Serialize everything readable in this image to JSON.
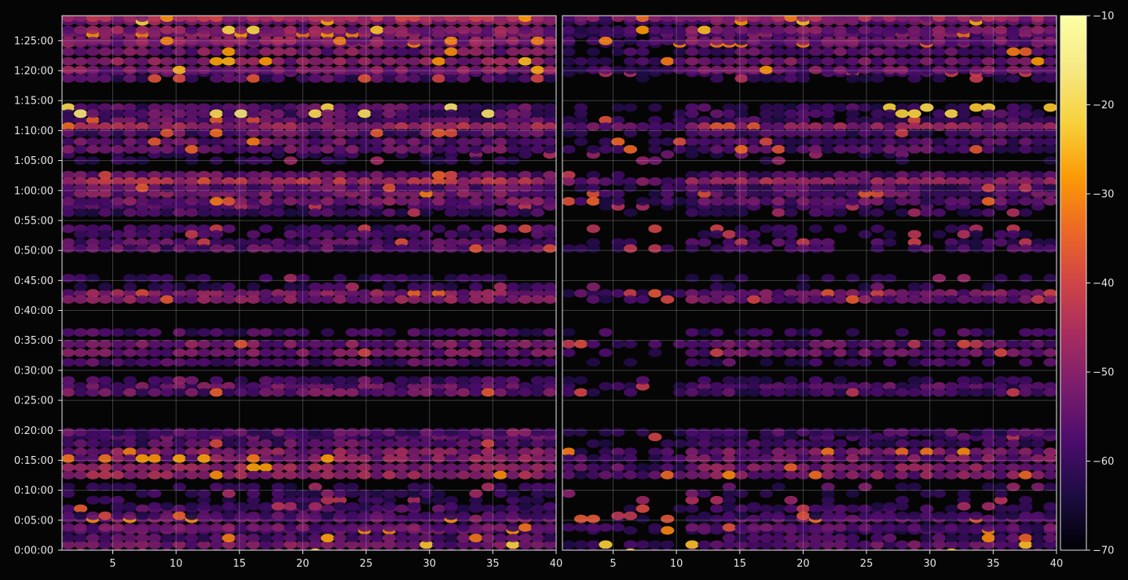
{
  "chart_data": {
    "type": "heatmap",
    "panels": 2,
    "x": {
      "label": "",
      "lim": [
        1,
        40
      ],
      "ticks": [
        5,
        10,
        15,
        20,
        25,
        30,
        35,
        40
      ],
      "tick_labels": [
        "5",
        "10",
        "15",
        "20",
        "25",
        "30",
        "35",
        "40"
      ]
    },
    "y": {
      "label": "",
      "lim_seconds": [
        0,
        5350
      ],
      "ticks_seconds": [
        0,
        300,
        600,
        900,
        1200,
        1500,
        1800,
        2100,
        2400,
        2700,
        3000,
        3300,
        3600,
        3900,
        4200,
        4500,
        4800,
        5100
      ],
      "tick_labels": [
        "0:00:00",
        "0:05:00",
        "0:10:00",
        "0:15:00",
        "0:20:00",
        "0:25:00",
        "0:30:00",
        "0:35:00",
        "0:40:00",
        "0:45:00",
        "0:50:00",
        "0:55:00",
        "1:00:00",
        "1:05:00",
        "1:10:00",
        "1:15:00",
        "1:20:00",
        "1:25:00"
      ]
    },
    "colorbar": {
      "colormap": "inferno",
      "range": [
        -70,
        -10
      ],
      "ticks": [
        -70,
        -60,
        -50,
        -40,
        -30,
        -20,
        -10
      ],
      "tick_labels": [
        "−70",
        "−60",
        "−50",
        "−40",
        "−30",
        "−20",
        "−10"
      ]
    },
    "grid": true,
    "background": "#050505",
    "bands": [
      {
        "t": 15,
        "w": 100,
        "level": -46,
        "peak": -22
      },
      {
        "t": 160,
        "w": 90,
        "level": -50,
        "peak": -30
      },
      {
        "t": 270,
        "w": 110,
        "level": -47,
        "peak": -32
      },
      {
        "t": 380,
        "w": 80,
        "level": -52,
        "peak": -38
      },
      {
        "t": 470,
        "w": 60,
        "level": -56,
        "peak": -44
      },
      {
        "t": 600,
        "w": 70,
        "level": -56,
        "peak": -48
      },
      {
        "t": 790,
        "w": 90,
        "level": -42,
        "peak": -30
      },
      {
        "t": 950,
        "w": 70,
        "level": -44,
        "peak": -30
      },
      {
        "t": 1100,
        "w": 70,
        "level": -50,
        "peak": -38
      },
      {
        "t": 1180,
        "w": 40,
        "level": -57,
        "peak": -50
      },
      {
        "t": 1610,
        "w": 60,
        "level": -48,
        "peak": -38
      },
      {
        "t": 1700,
        "w": 40,
        "level": -60,
        "peak": -52
      },
      {
        "t": 1880,
        "w": 40,
        "level": -58,
        "peak": -52
      },
      {
        "t": 2020,
        "w": 110,
        "level": -46,
        "peak": -38
      },
      {
        "t": 2180,
        "w": 40,
        "level": -60,
        "peak": -54
      },
      {
        "t": 2540,
        "w": 60,
        "level": -44,
        "peak": -36
      },
      {
        "t": 2680,
        "w": 110,
        "level": -56,
        "peak": -48
      },
      {
        "t": 3050,
        "w": 60,
        "level": -50,
        "peak": -40
      },
      {
        "t": 3190,
        "w": 50,
        "level": -54,
        "peak": -40
      },
      {
        "t": 3410,
        "w": 60,
        "level": -52,
        "peak": -42
      },
      {
        "t": 3530,
        "w": 90,
        "level": -46,
        "peak": -34
      },
      {
        "t": 3690,
        "w": 130,
        "level": -46,
        "peak": -38
      },
      {
        "t": 3930,
        "w": 60,
        "level": -58,
        "peak": -48
      },
      {
        "t": 4050,
        "w": 90,
        "level": -48,
        "peak": -34
      },
      {
        "t": 4240,
        "w": 130,
        "level": -47,
        "peak": -36
      },
      {
        "t": 4400,
        "w": 60,
        "level": -50,
        "peak": -18
      },
      {
        "t": 4750,
        "w": 50,
        "level": -52,
        "peak": -40
      },
      {
        "t": 4850,
        "w": 110,
        "level": -44,
        "peak": -26
      },
      {
        "t": 5030,
        "w": 100,
        "level": -46,
        "peak": -30
      },
      {
        "t": 5130,
        "w": 70,
        "level": -44,
        "peak": -30
      },
      {
        "t": 5250,
        "w": 110,
        "level": -44,
        "peak": -24
      },
      {
        "t": 5330,
        "w": 40,
        "level": -45,
        "peak": -28
      }
    ],
    "panel_offsets_dB": [
      0,
      -3
    ]
  }
}
